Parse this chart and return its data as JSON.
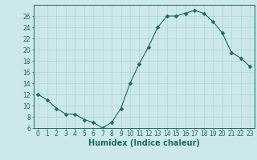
{
  "x": [
    0,
    1,
    2,
    3,
    4,
    5,
    6,
    7,
    8,
    9,
    10,
    11,
    12,
    13,
    14,
    15,
    16,
    17,
    18,
    19,
    20,
    21,
    22,
    23
  ],
  "y": [
    12,
    11,
    9.5,
    8.5,
    8.5,
    7.5,
    7,
    6,
    7,
    9.5,
    14,
    17.5,
    20.5,
    24,
    26,
    26,
    26.5,
    27,
    26.5,
    25,
    23,
    19.5,
    18.5,
    17
  ],
  "line_color": "#1a6b5a",
  "marker": "D",
  "marker_size": 2.5,
  "bg_color": "#cce8e8",
  "grid_color": "#add4d4",
  "xlabel": "Humidex (Indice chaleur)",
  "ylim": [
    6,
    28
  ],
  "xlim": [
    -0.5,
    23.5
  ],
  "yticks": [
    6,
    8,
    10,
    12,
    14,
    16,
    18,
    20,
    22,
    24,
    26
  ],
  "xticks": [
    0,
    1,
    2,
    3,
    4,
    5,
    6,
    7,
    8,
    9,
    10,
    11,
    12,
    13,
    14,
    15,
    16,
    17,
    18,
    19,
    20,
    21,
    22,
    23
  ],
  "axis_color": "#1a6b5a",
  "label_fontsize": 7,
  "tick_fontsize": 5.5
}
